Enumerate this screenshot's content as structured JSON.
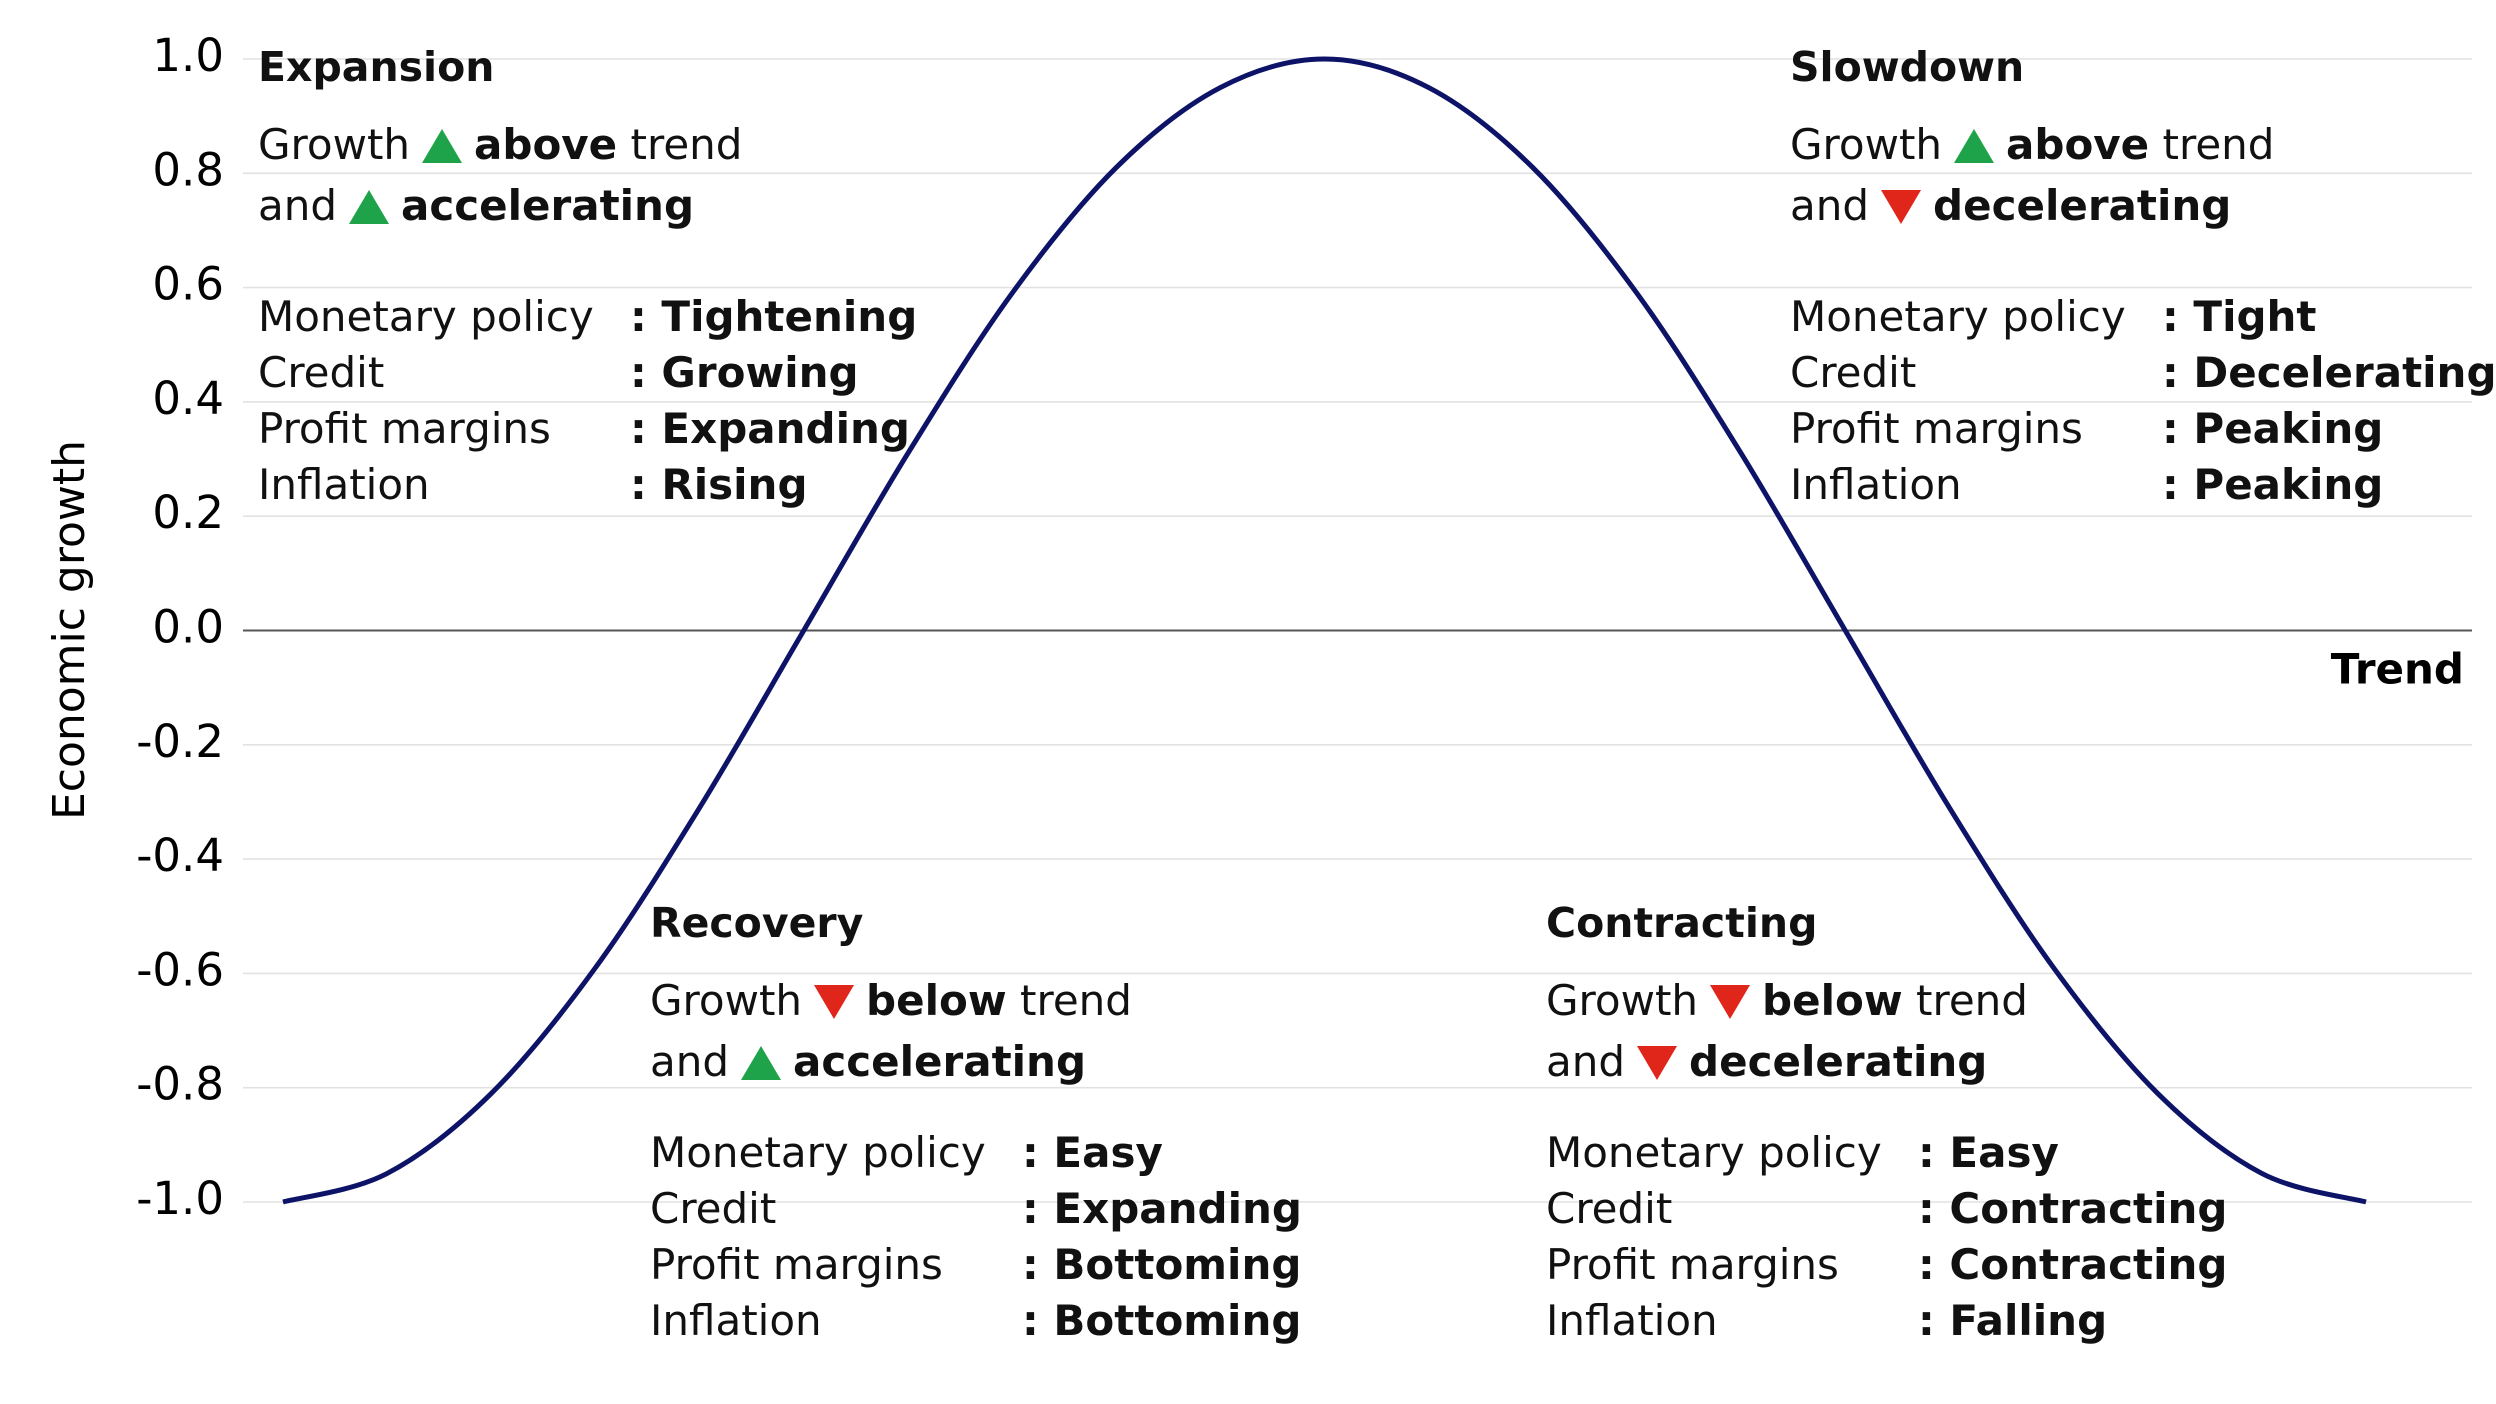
{
  "chart_data": {
    "type": "line",
    "y_label": "Economic growth",
    "trend_label": "Trend",
    "x": [
      0,
      0.05,
      0.1,
      0.15,
      0.2,
      0.25,
      0.3,
      0.35,
      0.4,
      0.45,
      0.5,
      0.55,
      0.6,
      0.65,
      0.7,
      0.75,
      0.8,
      0.85,
      0.9,
      0.95,
      1
    ],
    "values": [
      -1,
      -0.95,
      -0.81,
      -0.59,
      -0.31,
      0,
      0.31,
      0.59,
      0.81,
      0.95,
      1,
      0.95,
      0.81,
      0.59,
      0.31,
      0,
      -0.31,
      -0.59,
      -0.81,
      -0.95,
      -1
    ],
    "color": "#0d1467",
    "xlim": [
      0,
      1
    ],
    "ylim": [
      -1,
      1
    ],
    "yticks": [
      {
        "value": 1,
        "label": "1.0"
      },
      0.8,
      0.6,
      0.4,
      0.2,
      {
        "value": 0,
        "label": "0.0"
      },
      -0.2,
      -0.4,
      -0.6,
      -0.8,
      {
        "value": -1,
        "label": "-1.0"
      }
    ],
    "grid": true
  },
  "quadrants": [
    {
      "title": "Expansion",
      "growth": "Growth",
      "level": "above",
      "trend": "trend",
      "and": "and",
      "change": "accelerating",
      "rows": [
        {
          "label": "Monetary policy",
          "value": ": Tightening"
        },
        {
          "label": "Credit",
          "value": ": Growing"
        },
        {
          "label": "Profit margins",
          "value": ": Expanding"
        },
        {
          "label": "Inflation",
          "value": ": Rising"
        }
      ]
    },
    {
      "title": "Slowdown",
      "growth": "Growth",
      "level": "above",
      "trend": "trend",
      "and": "and",
      "change": "decelerating",
      "rows": [
        {
          "label": "Monetary policy",
          "value": ": Tight"
        },
        {
          "label": "Credit",
          "value": ": Decelerating"
        },
        {
          "label": "Profit margins",
          "value": ": Peaking"
        },
        {
          "label": "Inflation",
          "value": ": Peaking"
        }
      ]
    },
    {
      "title": "Recovery",
      "growth": "Growth",
      "level": "below",
      "trend": "trend",
      "and": "and",
      "change": "accelerating",
      "rows": [
        {
          "label": "Monetary policy",
          "value": ": Easy"
        },
        {
          "label": "Credit",
          "value": ": Expanding"
        },
        {
          "label": "Profit margins",
          "value": ": Bottoming"
        },
        {
          "label": "Inflation",
          "value": ": Bottoming"
        }
      ]
    },
    {
      "title": "Contracting",
      "growth": "Growth",
      "level": "below",
      "trend": "trend",
      "and": "and",
      "change": "decelerating",
      "rows": [
        {
          "label": "Monetary policy",
          "value": ": Easy"
        },
        {
          "label": "Credit",
          "value": ": Contracting"
        },
        {
          "label": "Profit margins",
          "value": ": Contracting"
        },
        {
          "label": "Inflation",
          "value": ": Falling"
        }
      ]
    }
  ]
}
